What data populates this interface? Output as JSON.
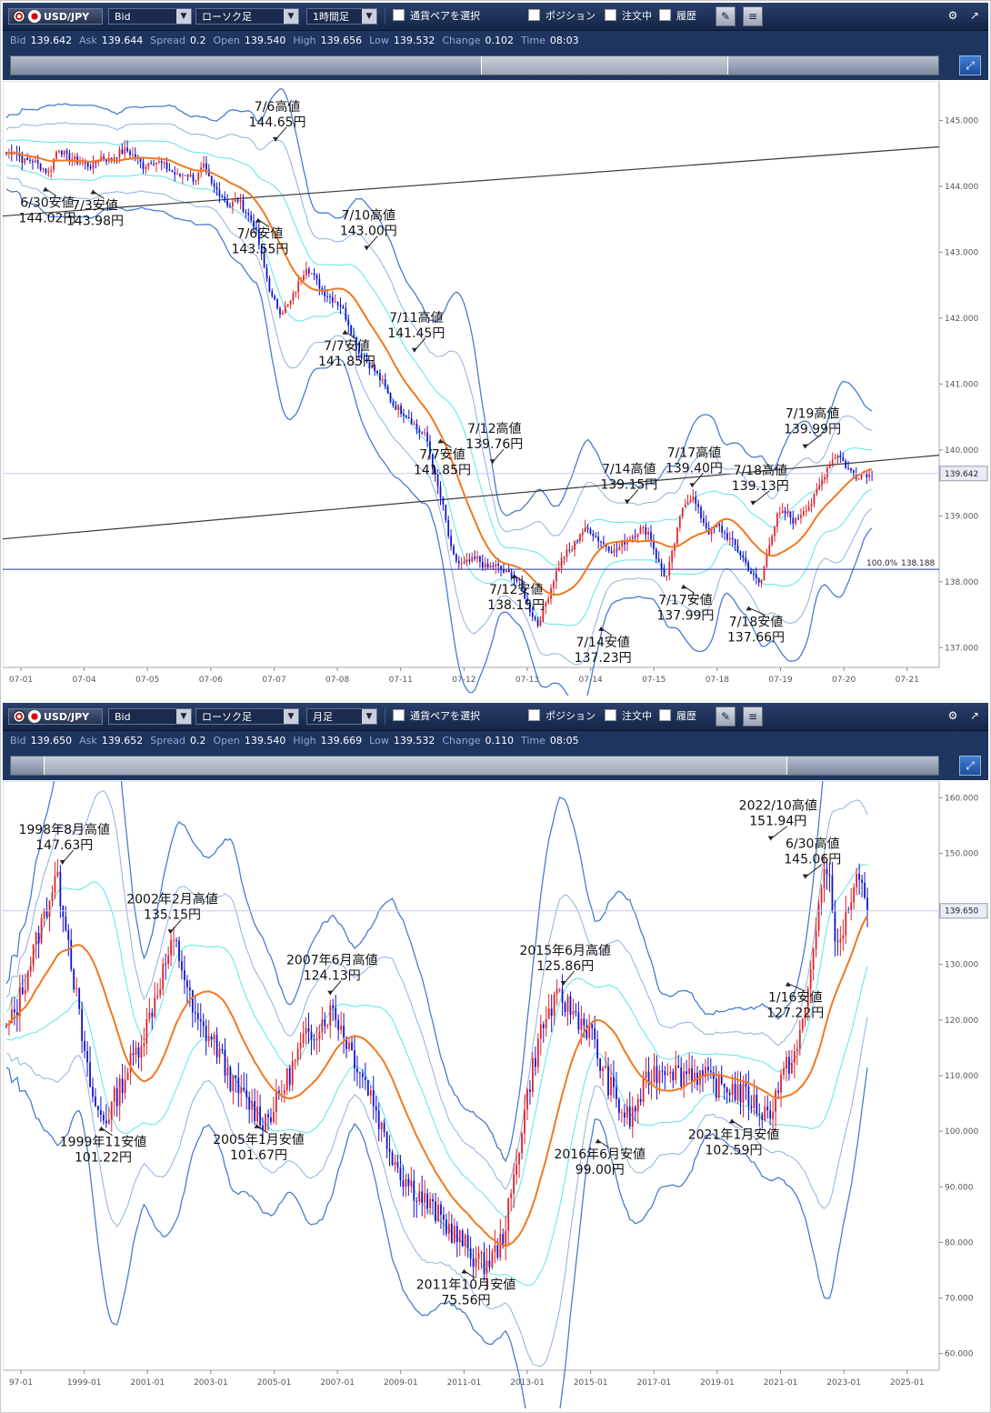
{
  "panel1": {
    "toolbar": {
      "symbol": "USD/JPY",
      "price_type": "Bid",
      "chart_type": "ローソク足",
      "period": "1時間足",
      "pair_select": "通貨ペアを選択",
      "position": "ポジション",
      "orders": "注文中",
      "history": "履歴",
      "settings_icon": "gear-icon",
      "expand_icon": "expand-icon"
    },
    "quote": [
      {
        "label": "Bid",
        "value": "139.642"
      },
      {
        "label": "Ask",
        "value": "139.644"
      },
      {
        "label": "Spread",
        "value": "0.2"
      },
      {
        "label": "Open",
        "value": "139.540"
      },
      {
        "label": "High",
        "value": "139.656"
      },
      {
        "label": "Low",
        "value": "139.532"
      },
      {
        "label": "Change",
        "value": "0.102"
      },
      {
        "label": "Time",
        "value": "08:03"
      }
    ],
    "navigator": {
      "window_start": 0.507,
      "window_end": 0.772
    },
    "colors": {
      "up": "#e0202a",
      "down": "#1010d0",
      "ma": "#f07820",
      "band1": "#5ce6e6",
      "band2": "#8fb0e0",
      "band3": "#4a7bd0",
      "trend": "#3a3a3a",
      "hline": "#2233aa"
    },
    "chart_data": {
      "type": "candlestick",
      "timeframe": "1時間足",
      "x": [
        "07-01",
        "07-04",
        "07-05",
        "07-06",
        "07-07",
        "07-08",
        "07-11",
        "07-12",
        "07-13",
        "07-14",
        "07-15",
        "07-18",
        "07-19",
        "07-20",
        "07-21"
      ],
      "close_path": [
        144.5,
        144.55,
        144.38,
        144.4,
        144.3,
        144.2,
        144.6,
        144.45,
        144.4,
        144.35,
        144.3,
        144.45,
        144.4,
        144.5,
        144.55,
        144.45,
        144.3,
        144.4,
        144.35,
        144.25,
        144.15,
        144.2,
        144.1,
        144.3,
        144.0,
        143.9,
        143.7,
        143.8,
        143.6,
        143.4,
        142.8,
        142.3,
        142.1,
        142.2,
        142.5,
        142.8,
        142.6,
        142.4,
        142.3,
        142.2,
        141.9,
        141.5,
        141.35,
        141.2,
        141.0,
        140.7,
        140.6,
        140.5,
        140.3,
        140.2,
        139.6,
        139.1,
        138.4,
        138.25,
        138.3,
        138.35,
        138.2,
        138.25,
        138.15,
        138.1,
        137.95,
        137.6,
        137.35,
        137.7,
        138.1,
        138.4,
        138.5,
        138.75,
        138.8,
        138.65,
        138.55,
        138.45,
        138.6,
        138.7,
        138.8,
        138.75,
        138.3,
        138.05,
        138.6,
        139.2,
        139.3,
        139.0,
        138.75,
        138.85,
        138.7,
        138.55,
        138.35,
        138.1,
        137.95,
        138.6,
        139.0,
        139.05,
        138.9,
        139.1,
        139.2,
        139.5,
        139.8,
        139.95,
        139.75,
        139.6,
        139.65,
        139.64
      ],
      "last_price": "139.642",
      "ylim": [
        136.7,
        145.6
      ],
      "y_ticks": [
        "145.000",
        "144.000",
        "143.000",
        "142.000",
        "141.000",
        "140.000",
        "139.000",
        "138.000",
        "137.000"
      ],
      "fib_label": "100.0%",
      "fib_value": "138.188",
      "annotations": [
        {
          "lines": [
            "7/6高値",
            "144.65円"
          ],
          "x": 0.31,
          "y": 144.65
        },
        {
          "lines": [
            "6/30安値",
            "144.02円"
          ],
          "x": 0.045,
          "y": 144.02
        },
        {
          "lines": [
            "7/3安値",
            "143.98円"
          ],
          "x": 0.1,
          "y": 143.98
        },
        {
          "lines": [
            "7/10高値",
            "143.00円"
          ],
          "x": 0.415,
          "y": 143.0
        },
        {
          "lines": [
            "7/6安値",
            "143.55円"
          ],
          "x": 0.29,
          "y": 143.55
        },
        {
          "lines": [
            "7/11高値",
            "141.45円"
          ],
          "x": 0.47,
          "y": 141.45
        },
        {
          "lines": [
            "7/7安値",
            "141.85円"
          ],
          "x": 0.39,
          "y": 141.85
        },
        {
          "lines": [
            "7/12高値",
            "139.76円"
          ],
          "x": 0.56,
          "y": 139.76
        },
        {
          "lines": [
            "7/7安値",
            "141.85円"
          ],
          "x": 0.5,
          "y": 140.2
        },
        {
          "lines": [
            "7/14高値",
            "139.15円"
          ],
          "x": 0.715,
          "y": 139.15
        },
        {
          "lines": [
            "7/17高値",
            "139.40円"
          ],
          "x": 0.79,
          "y": 139.4
        },
        {
          "lines": [
            "7/18高値",
            "139.13円"
          ],
          "x": 0.86,
          "y": 139.13
        },
        {
          "lines": [
            "7/19高値",
            "139.99円"
          ],
          "x": 0.92,
          "y": 139.99
        },
        {
          "lines": [
            "7/12安値",
            "138.15円"
          ],
          "x": 0.585,
          "y": 138.15
        },
        {
          "lines": [
            "7/14安値",
            "137.23円"
          ],
          "x": 0.685,
          "y": 137.35
        },
        {
          "lines": [
            "7/17安値",
            "137.99円"
          ],
          "x": 0.78,
          "y": 137.99
        },
        {
          "lines": [
            "7/18安値",
            "137.66円"
          ],
          "x": 0.855,
          "y": 137.66
        }
      ]
    }
  },
  "panel2": {
    "toolbar": {
      "symbol": "USD/JPY",
      "price_type": "Bid",
      "chart_type": "ローソク足",
      "period": "月足",
      "pair_select": "通貨ペアを選択",
      "position": "ポジション",
      "orders": "注文中",
      "history": "履歴",
      "settings_icon": "gear-icon",
      "expand_icon": "expand-icon"
    },
    "quote": [
      {
        "label": "Bid",
        "value": "139.650"
      },
      {
        "label": "Ask",
        "value": "139.652"
      },
      {
        "label": "Spread",
        "value": "0.2"
      },
      {
        "label": "Open",
        "value": "139.540"
      },
      {
        "label": "High",
        "value": "139.669"
      },
      {
        "label": "Low",
        "value": "139.532"
      },
      {
        "label": "Change",
        "value": "0.110"
      },
      {
        "label": "Time",
        "value": "08:05"
      }
    ],
    "navigator": {
      "window_start": 0.035,
      "window_end": 0.835
    },
    "chart_data": {
      "type": "candlestick",
      "timeframe": "月足",
      "x": [
        "97-01",
        "1999-01",
        "2001-01",
        "2003-01",
        "2005-01",
        "2007-01",
        "2009-01",
        "2011-01",
        "2013-01",
        "2015-01",
        "2017-01",
        "2019-01",
        "2021-01",
        "2023-01",
        "2025-01"
      ],
      "close_path": [
        118,
        122,
        128,
        134,
        140,
        146,
        138,
        125,
        112,
        104,
        102,
        106,
        110,
        114,
        118,
        124,
        130,
        134,
        128,
        120,
        118,
        116,
        112,
        108,
        106,
        104,
        102,
        104,
        108,
        112,
        116,
        118,
        120,
        122,
        118,
        114,
        110,
        106,
        100,
        96,
        92,
        90,
        88,
        86,
        84,
        82,
        80,
        78,
        76,
        77,
        80,
        88,
        100,
        110,
        118,
        122,
        124,
        122,
        120,
        118,
        112,
        108,
        104,
        102,
        106,
        110,
        111,
        112,
        110,
        111,
        110,
        109,
        108,
        108,
        107,
        106,
        104,
        103,
        108,
        112,
        115,
        125,
        140,
        148,
        132,
        140,
        145,
        139.65
      ],
      "last_price": "139.650",
      "ylim": [
        57,
        163
      ],
      "y_ticks": [
        "160.000",
        "150.000",
        "140.000",
        "130.000",
        "120.000",
        "110.000",
        "100.000",
        "90.000",
        "80.000",
        "70.000",
        "60.000"
      ],
      "annotations": [
        {
          "lines": [
            "1998年8月高値",
            "147.63円"
          ],
          "x": 0.065,
          "y": 147.63
        },
        {
          "lines": [
            "2002年2月高値",
            "135.15円"
          ],
          "x": 0.19,
          "y": 135.15
        },
        {
          "lines": [
            "2007年6月高値",
            "124.13円"
          ],
          "x": 0.375,
          "y": 124.13
        },
        {
          "lines": [
            "1999年11安値",
            "101.22円"
          ],
          "x": 0.11,
          "y": 101.22
        },
        {
          "lines": [
            "2005年1月安値",
            "101.67円"
          ],
          "x": 0.29,
          "y": 101.67
        },
        {
          "lines": [
            "2011年10月安値",
            "75.56円"
          ],
          "x": 0.53,
          "y": 75.56
        },
        {
          "lines": [
            "2015年6月高値",
            "125.86円"
          ],
          "x": 0.645,
          "y": 125.86
        },
        {
          "lines": [
            "2016年6月安値",
            "99.00円"
          ],
          "x": 0.685,
          "y": 99.0
        },
        {
          "lines": [
            "2021年1月安値",
            "102.59円"
          ],
          "x": 0.84,
          "y": 102.59
        },
        {
          "lines": [
            "2022/10高値",
            "151.94円"
          ],
          "x": 0.885,
          "y": 151.94
        },
        {
          "lines": [
            "6/30高値",
            "145.06円"
          ],
          "x": 0.925,
          "y": 145.06
        },
        {
          "lines": [
            "1/16安値",
            "127.22円"
          ],
          "x": 0.905,
          "y": 127.22
        }
      ]
    }
  }
}
